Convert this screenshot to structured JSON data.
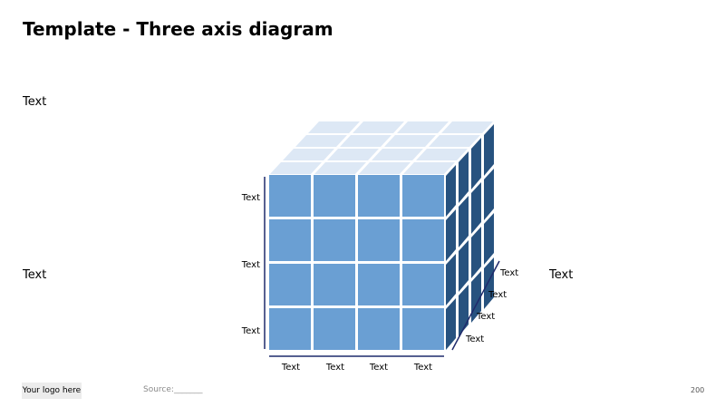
{
  "title": "Template - Three axis diagram",
  "side_texts": {
    "left_top": "Text",
    "left_middle": "Text",
    "right_middle": "Text"
  },
  "axis_labels": {
    "vertical": [
      "Text",
      "Text",
      "Text"
    ],
    "horizontal": [
      "Text",
      "Text",
      "Text",
      "Text"
    ],
    "depth": [
      "Text",
      "Text",
      "Text",
      "Text"
    ]
  },
  "footer": {
    "logo": "Your logo here",
    "source": "Source:_______",
    "page_number": "200"
  },
  "colors": {
    "front": "#6a9fd3",
    "top": "#dde8f5",
    "side": "#27527f",
    "axis": "#1f2a6b"
  }
}
